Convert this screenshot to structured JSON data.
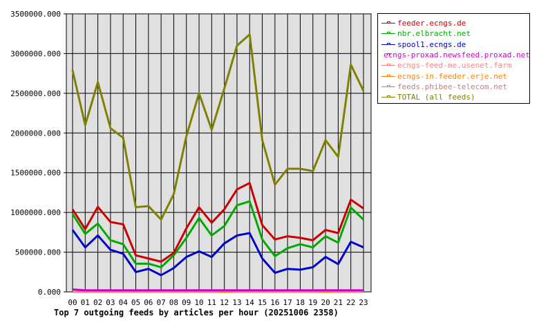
{
  "chart_data": {
    "type": "line",
    "title": "Top 7 outgoing feeds by articles per hour (20251006 2358)",
    "xlabel": "",
    "ylabel": "",
    "categories": [
      "00",
      "01",
      "02",
      "03",
      "04",
      "05",
      "06",
      "07",
      "08",
      "09",
      "10",
      "11",
      "12",
      "13",
      "14",
      "15",
      "16",
      "17",
      "18",
      "19",
      "20",
      "21",
      "22",
      "23"
    ],
    "ylim": [
      0,
      3500000
    ],
    "yticks": [
      "0.000",
      "500000.000",
      "1000000.000",
      "1500000.000",
      "2000000.000",
      "2500000.000",
      "3000000.000",
      "3500000.000"
    ],
    "grid": true,
    "legend_position": "right",
    "background": "#e0e0e0",
    "series": [
      {
        "name": "feeder.ecngs.de",
        "color": "#cc0000",
        "values": [
          1040000,
          790000,
          1070000,
          880000,
          850000,
          460000,
          420000,
          380000,
          490000,
          800000,
          1065000,
          870000,
          1040000,
          1290000,
          1370000,
          840000,
          660000,
          700000,
          680000,
          650000,
          780000,
          740000,
          1160000,
          1050000
        ]
      },
      {
        "name": "nbr.elbracht.net",
        "color": "#00aa00",
        "values": [
          980000,
          730000,
          860000,
          650000,
          600000,
          355000,
          355000,
          310000,
          460000,
          680000,
          930000,
          710000,
          830000,
          1090000,
          1140000,
          660000,
          450000,
          550000,
          600000,
          560000,
          700000,
          620000,
          1060000,
          910000
        ]
      },
      {
        "name": "spool1.ecngs.de",
        "color": "#0000cc",
        "values": [
          780000,
          560000,
          710000,
          530000,
          480000,
          250000,
          290000,
          210000,
          300000,
          440000,
          510000,
          440000,
          610000,
          710000,
          740000,
          420000,
          240000,
          290000,
          280000,
          310000,
          440000,
          350000,
          630000,
          560000
        ]
      },
      {
        "name": "ecngs-proxad.newsfeed.proxad.net",
        "color": "#cc00cc",
        "values": [
          30000,
          20000,
          20000,
          20000,
          20000,
          20000,
          20000,
          20000,
          20000,
          20000,
          20000,
          20000,
          20000,
          20000,
          20000,
          20000,
          20000,
          20000,
          20000,
          20000,
          20000,
          20000,
          20000,
          20000
        ]
      },
      {
        "name": "ecngs-feed-me.usenet.farm",
        "color": "#ff8080",
        "values": [
          0,
          0,
          0,
          0,
          0,
          0,
          0,
          0,
          0,
          0,
          0,
          0,
          15000,
          0,
          0,
          0,
          0,
          0,
          0,
          0,
          15000,
          0,
          0,
          0
        ]
      },
      {
        "name": "ecngs-in.feeder.erje.net",
        "color": "#ff8000",
        "values": [
          0,
          0,
          0,
          0,
          0,
          0,
          0,
          0,
          0,
          0,
          0,
          0,
          0,
          0,
          0,
          0,
          0,
          0,
          0,
          0,
          0,
          0,
          0,
          0
        ]
      },
      {
        "name": "feeds.phibee-telecom.net",
        "color": "#c08080",
        "values": [
          0,
          0,
          0,
          0,
          0,
          0,
          0,
          0,
          0,
          0,
          0,
          0,
          0,
          0,
          0,
          0,
          0,
          0,
          0,
          0,
          0,
          0,
          0,
          0
        ]
      },
      {
        "name": "TOTAL (all feeds)",
        "color": "#808000",
        "values": [
          2790000,
          2100000,
          2640000,
          2060000,
          1940000,
          1066000,
          1080000,
          910000,
          1230000,
          1960000,
          2500000,
          2040000,
          2560000,
          3100000,
          3240000,
          1910000,
          1350000,
          1550000,
          1550000,
          1520000,
          1910000,
          1700000,
          2860000,
          2530000
        ]
      }
    ]
  }
}
